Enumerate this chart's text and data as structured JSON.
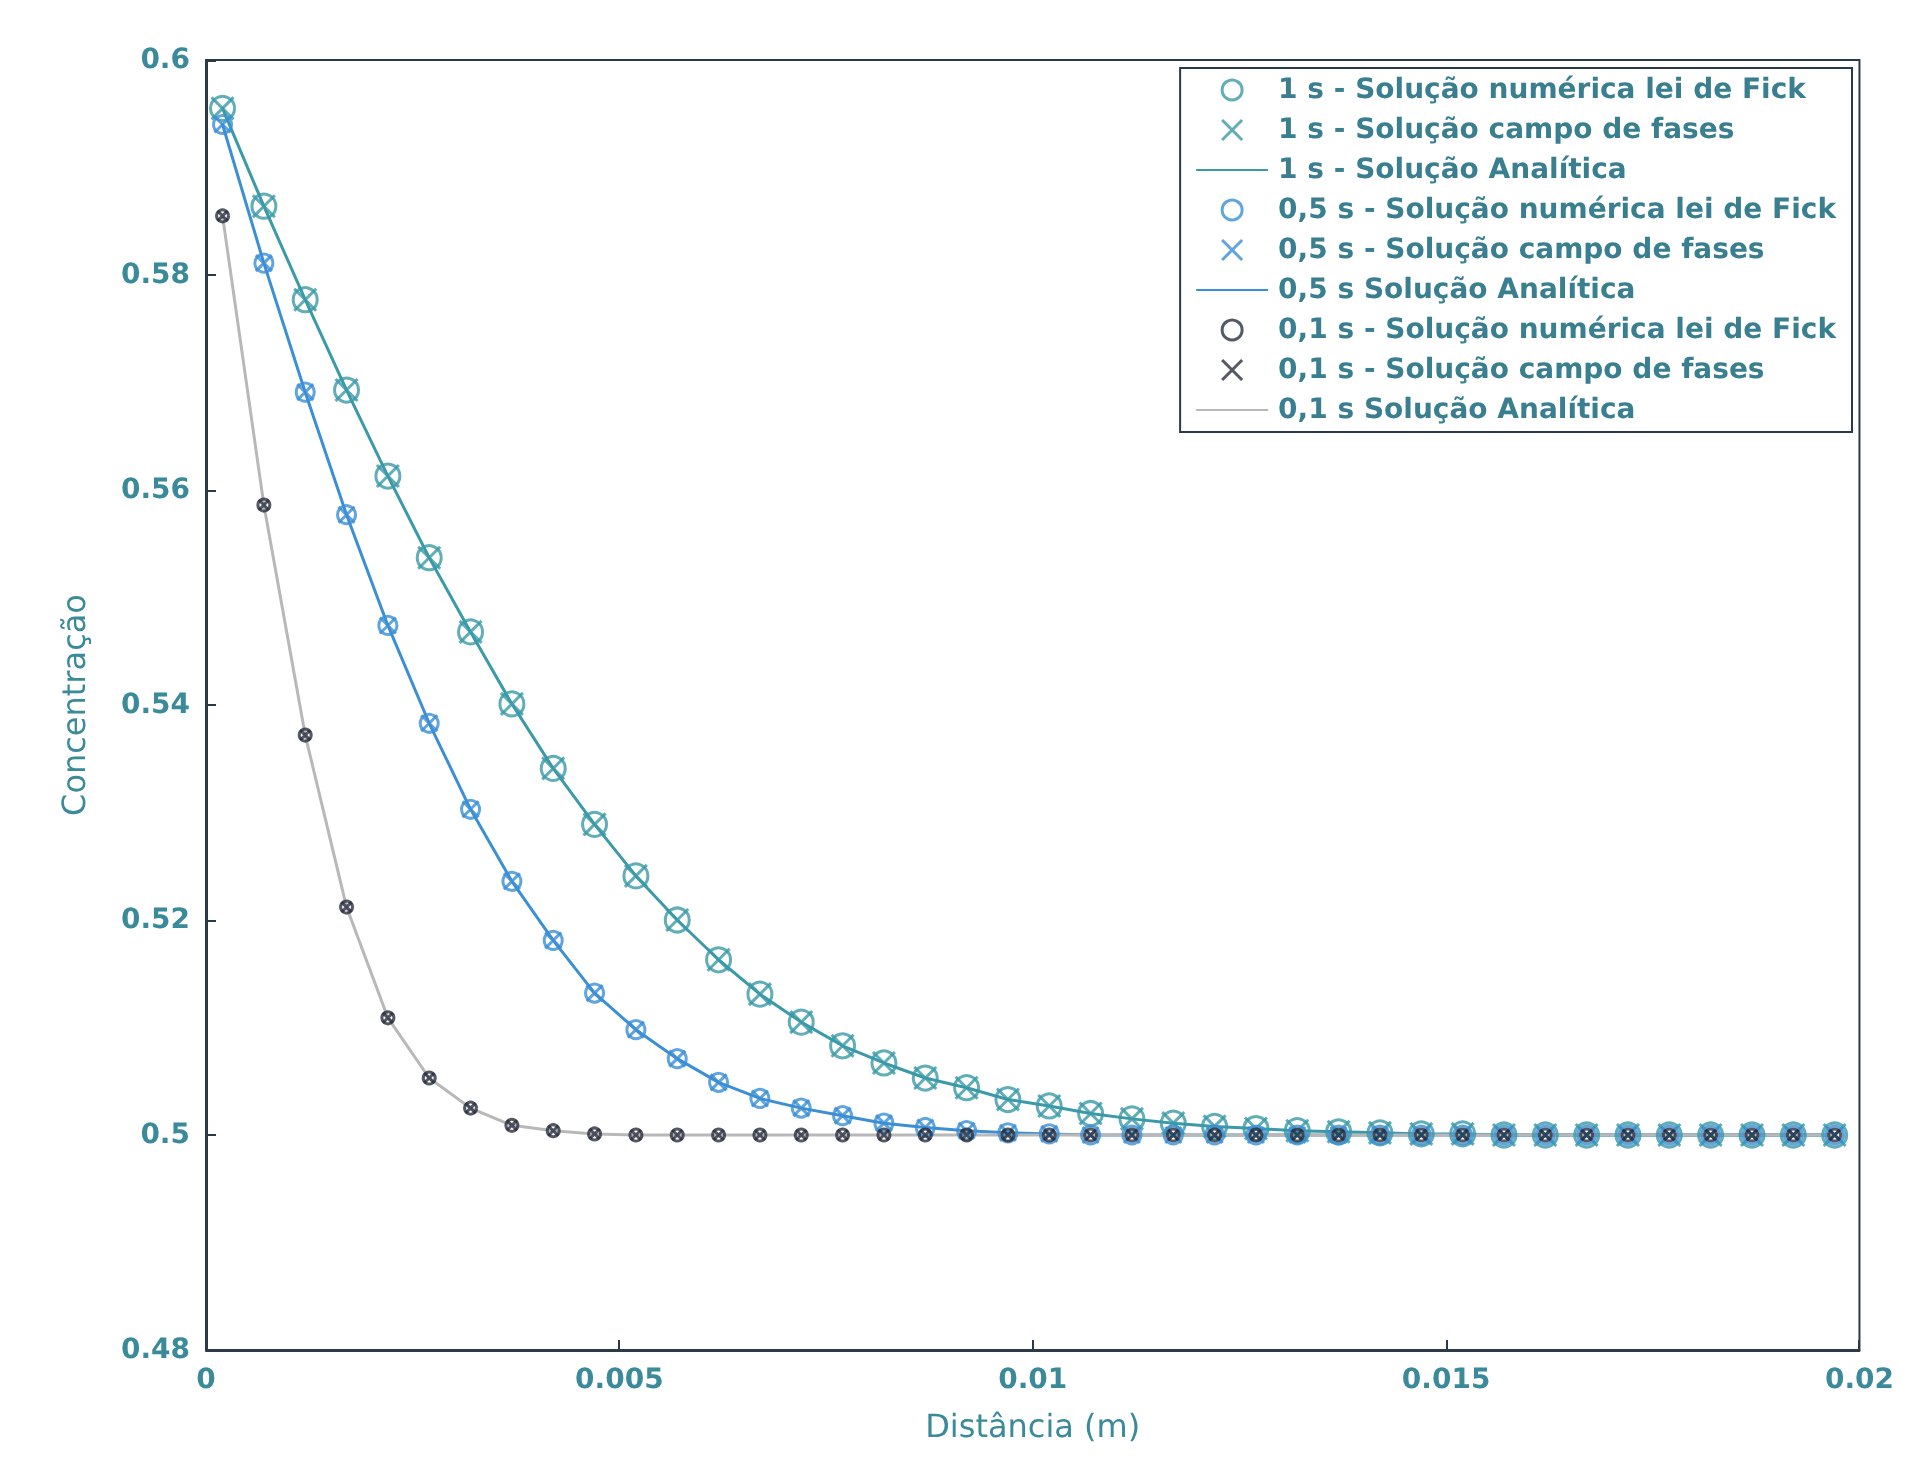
{
  "chart_data": {
    "type": "line",
    "xlabel": "Distância (m)",
    "ylabel": "Concentração",
    "x": [
      0.0002,
      0.0007,
      0.0012,
      0.0017,
      0.0022,
      0.0027,
      0.0032,
      0.0037,
      0.0042,
      0.0047,
      0.0052,
      0.0057,
      0.0062,
      0.0067,
      0.0072,
      0.0077,
      0.0082,
      0.0087,
      0.0092,
      0.0097,
      0.0102,
      0.0107,
      0.0112,
      0.0117,
      0.0122,
      0.0127,
      0.0132,
      0.0137,
      0.0142,
      0.0147,
      0.0152,
      0.0157,
      0.0162,
      0.0167,
      0.0172,
      0.0177,
      0.0182,
      0.0187,
      0.0192,
      0.0197
    ],
    "series": [
      {
        "name": "1 s - Solução numérica lei de Fick",
        "type": "scatter",
        "marker": "circle",
        "color": "#3a9aa8",
        "values": [
          0.5955,
          0.5864,
          0.5777,
          0.5693,
          0.5613,
          0.5537,
          0.5468,
          0.5401,
          0.5341,
          0.5289,
          0.5241,
          0.52,
          0.5163,
          0.5131,
          0.5105,
          0.5083,
          0.5067,
          0.5053,
          0.5044,
          0.5033,
          0.5027,
          0.502,
          0.5015,
          0.5011,
          0.5008,
          0.5006,
          0.5004,
          0.5003,
          0.5002,
          0.5001,
          0.5001,
          0.5,
          0.5,
          0.5,
          0.5,
          0.5,
          0.5,
          0.5,
          0.5,
          0.5
        ]
      },
      {
        "name": "1 s - Solução campo de fases",
        "type": "scatter",
        "marker": "cross",
        "color": "#3a9aa8",
        "values": [
          0.5955,
          0.5864,
          0.5777,
          0.5693,
          0.5613,
          0.5537,
          0.5468,
          0.5401,
          0.5341,
          0.5289,
          0.5241,
          0.52,
          0.5163,
          0.5131,
          0.5105,
          0.5083,
          0.5067,
          0.5053,
          0.5044,
          0.5033,
          0.5027,
          0.502,
          0.5015,
          0.5011,
          0.5008,
          0.5006,
          0.5004,
          0.5003,
          0.5002,
          0.5001,
          0.5001,
          0.5,
          0.5,
          0.5,
          0.5,
          0.5,
          0.5,
          0.5,
          0.5,
          0.5
        ]
      },
      {
        "name": "1 s - Solução Analítica",
        "marker": "none",
        "line_style": "solid",
        "color": "#3a9aa8",
        "values": [
          0.5955,
          0.5864,
          0.5777,
          0.5693,
          0.5613,
          0.5537,
          0.5468,
          0.5401,
          0.5341,
          0.5289,
          0.5241,
          0.52,
          0.5163,
          0.5131,
          0.5105,
          0.5083,
          0.5067,
          0.5053,
          0.5044,
          0.5033,
          0.5027,
          0.502,
          0.5015,
          0.5011,
          0.5008,
          0.5006,
          0.5004,
          0.5003,
          0.5002,
          0.5001,
          0.5001,
          0.5,
          0.5,
          0.5,
          0.5,
          0.5,
          0.5,
          0.5,
          0.5,
          0.5
        ]
      },
      {
        "name": "0,5 s - Solução numérica lei de Fick",
        "type": "scatter",
        "marker": "circle",
        "color": "#3b8fd6",
        "values": [
          0.594,
          0.5811,
          0.5691,
          0.5577,
          0.5474,
          0.5383,
          0.5303,
          0.5236,
          0.5181,
          0.5132,
          0.5098,
          0.5071,
          0.5049,
          0.5034,
          0.5025,
          0.5018,
          0.5011,
          0.5007,
          0.5004,
          0.5002,
          0.5001,
          0.5,
          0.5,
          0.5,
          0.5,
          0.5,
          0.5,
          0.5,
          0.5,
          0.5,
          0.5,
          0.5,
          0.5,
          0.5,
          0.5,
          0.5,
          0.5,
          0.5,
          0.5,
          0.5
        ]
      },
      {
        "name": "0,5 s - Solução campo de fases",
        "type": "scatter",
        "marker": "cross",
        "color": "#3b8fd6",
        "values": [
          0.594,
          0.5811,
          0.5691,
          0.5577,
          0.5474,
          0.5383,
          0.5303,
          0.5236,
          0.5181,
          0.5132,
          0.5098,
          0.5071,
          0.5049,
          0.5034,
          0.5025,
          0.5018,
          0.5011,
          0.5007,
          0.5004,
          0.5002,
          0.5001,
          0.5,
          0.5,
          0.5,
          0.5,
          0.5,
          0.5,
          0.5,
          0.5,
          0.5,
          0.5,
          0.5,
          0.5,
          0.5,
          0.5,
          0.5,
          0.5,
          0.5,
          0.5,
          0.5
        ]
      },
      {
        "name": "0,5 s Solução Analítica",
        "marker": "none",
        "line_style": "solid",
        "color": "#3b8fd6",
        "values": [
          0.594,
          0.5811,
          0.5691,
          0.5577,
          0.5474,
          0.5383,
          0.5303,
          0.5236,
          0.5181,
          0.5132,
          0.5098,
          0.5071,
          0.5049,
          0.5034,
          0.5025,
          0.5018,
          0.5011,
          0.5007,
          0.5004,
          0.5002,
          0.5001,
          0.5,
          0.5,
          0.5,
          0.5,
          0.5,
          0.5,
          0.5,
          0.5,
          0.5,
          0.5,
          0.5,
          0.5,
          0.5,
          0.5,
          0.5,
          0.5,
          0.5,
          0.5,
          0.5
        ]
      },
      {
        "name": "0,1 s - Solução numérica lei de Fick",
        "type": "scatter",
        "marker": "circle",
        "color": "#2a2f3f",
        "values": [
          0.5855,
          0.5586,
          0.5372,
          0.5212,
          0.5109,
          0.5053,
          0.5025,
          0.5009,
          0.5004,
          0.5001,
          0.5,
          0.5,
          0.5,
          0.5,
          0.5,
          0.5,
          0.5,
          0.5,
          0.5,
          0.5,
          0.5,
          0.5,
          0.5,
          0.5,
          0.5,
          0.5,
          0.5,
          0.5,
          0.5,
          0.5,
          0.5,
          0.5,
          0.5,
          0.5,
          0.5,
          0.5,
          0.5,
          0.5,
          0.5,
          0.5
        ]
      },
      {
        "name": "0,1 s - Solução campo de fases",
        "type": "scatter",
        "marker": "cross",
        "color": "#2a2f3f",
        "values": [
          0.5855,
          0.5586,
          0.5372,
          0.5212,
          0.5109,
          0.5053,
          0.5025,
          0.5009,
          0.5004,
          0.5001,
          0.5,
          0.5,
          0.5,
          0.5,
          0.5,
          0.5,
          0.5,
          0.5,
          0.5,
          0.5,
          0.5,
          0.5,
          0.5,
          0.5,
          0.5,
          0.5,
          0.5,
          0.5,
          0.5,
          0.5,
          0.5,
          0.5,
          0.5,
          0.5,
          0.5,
          0.5,
          0.5,
          0.5,
          0.5,
          0.5
        ]
      },
      {
        "name": "0,1 s Solução Analítica",
        "marker": "none",
        "line_style": "solid",
        "color": "#b8b8b8",
        "values": [
          0.5855,
          0.5586,
          0.5372,
          0.5212,
          0.5109,
          0.5053,
          0.5025,
          0.5009,
          0.5004,
          0.5001,
          0.5,
          0.5,
          0.5,
          0.5,
          0.5,
          0.5,
          0.5,
          0.5,
          0.5,
          0.5,
          0.5,
          0.5,
          0.5,
          0.5,
          0.5,
          0.5,
          0.5,
          0.5,
          0.5,
          0.5,
          0.5,
          0.5,
          0.5,
          0.5,
          0.5,
          0.5,
          0.5,
          0.5,
          0.5,
          0.5
        ]
      }
    ],
    "xlim": [
      0,
      0.02
    ],
    "xticks": [
      0,
      0.005,
      0.01,
      0.015,
      0.02
    ],
    "ylim": [
      0.48,
      0.6
    ],
    "yticks": [
      0.48,
      0.5,
      0.52,
      0.54,
      0.56,
      0.58,
      0.6
    ],
    "grid": false,
    "legend": "top right"
  }
}
